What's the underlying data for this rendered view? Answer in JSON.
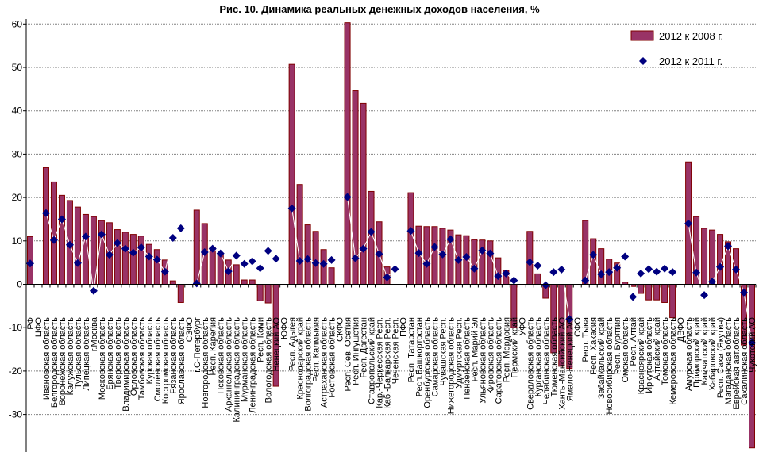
{
  "chart_data": {
    "type": "bar",
    "title": "Рис. 10. Динамика реальных денежных доходов населения, %",
    "xlabel": "",
    "ylabel": "",
    "ylim": [
      -38,
      60
    ],
    "yticks": [
      60,
      50,
      40,
      30,
      20,
      10,
      0,
      -10,
      -20,
      -30
    ],
    "grid": true,
    "legend_position": "top-right",
    "categories": [
      "РФ",
      "ЦФО",
      "Ивановская область",
      "Белгородская область",
      "Воронежская область",
      "Калужская область",
      "Тульская область",
      "Липецкая область",
      "г.Москва",
      "Московская область",
      "Брянская область",
      "Тверская область",
      "Владимирская область",
      "Орловская область",
      "Тамбовская область",
      "Курская область",
      "Смоленская область",
      "Костромская область",
      "Рязанская область",
      "Ярославская область",
      "СЗФО",
      "г.С-Петербург",
      "Новгородская область",
      "Респ. Карелия",
      "Псковская область",
      "Архангельская область",
      "Калининградская область",
      "Мурманская область",
      "Ленинградская область",
      "Респ. Коми",
      "Вологодская область",
      "Ненецкий АО",
      "ЮФО",
      "Респ. Адыгея",
      "Краснодарский край",
      "Волгоградская область",
      "Респ. Калмыкия",
      "Астраханская область",
      "Ростовская область",
      "СКФО",
      "Респ. Сев. Осетия",
      "Респ. Ингушетия",
      "Респ. Дагестан",
      "Ставропольский край",
      "Кар.-Черкесская Респ.",
      "Каб.-Балкарская Респ.",
      "Чеченская Респ.",
      "ПФО",
      "Респ. Татарстан",
      "Респ.Башкортостан",
      "Оренбургская область",
      "Самарская область",
      "Чувашская Респ.",
      "Нижегородская область",
      "Удмуртская Респ.",
      "Пензенская область",
      "Респ. Марий Эл",
      "Ульяновская область",
      "Кировская область",
      "Саратовская область",
      "Респ. Мордовия",
      "Пермский край",
      "УФО",
      "Свердловская область",
      "Курганская область",
      "Челябинская область",
      "Тюменская область",
      "Ханты-Мансийский АО",
      "Ямало-Ненецкий АО",
      "СФО",
      "Респ. Тыва",
      "Респ. Хакасия",
      "Забайкальский край",
      "Новосибирская область",
      "Респ. Бурятия",
      "Омская область",
      "Респ. Алтай",
      "Красноярский край",
      "Иркутская область",
      "Алтайский край",
      "Томская область",
      "Кемеровская область",
      "ДВФО",
      "Амурская область",
      "Приморский край",
      "Камчатский край",
      "Хабаровский край",
      "Респ. Саха (Якутия)",
      "Магаданская область",
      "Еврейская авт.область",
      "Сахалинская область",
      "Чукотский АО"
    ],
    "series": [
      {
        "name": "2012 к 2008 г.",
        "type": "bar",
        "color": "#993366",
        "border": "#800000",
        "values": [
          11.0,
          null,
          26.9,
          23.6,
          20.5,
          19.3,
          17.8,
          16.1,
          15.6,
          14.7,
          14.2,
          12.6,
          12.0,
          11.5,
          11.1,
          9.2,
          8.0,
          5.6,
          0.8,
          -4.2,
          null,
          17.1,
          14.0,
          8.6,
          7.1,
          5.6,
          4.5,
          1.0,
          1.0,
          -3.8,
          -4.3,
          -23.5,
          null,
          50.7,
          23.0,
          13.7,
          12.2,
          8.0,
          3.8,
          null,
          60.3,
          44.6,
          41.7,
          21.4,
          14.4,
          4.0,
          null,
          null,
          21.1,
          13.4,
          13.3,
          13.3,
          12.9,
          12.5,
          11.4,
          11.2,
          10.3,
          10.2,
          10.0,
          6.1,
          3.2,
          -10.0,
          null,
          12.2,
          2.4,
          -3.2,
          -15.8,
          -18.9,
          -19.4,
          null,
          14.7,
          10.5,
          8.2,
          5.8,
          4.9,
          0.5,
          -0.5,
          -2.1,
          -3.6,
          -3.6,
          -4.2,
          -7.7,
          null,
          28.2,
          15.6,
          12.9,
          12.5,
          11.5,
          9.8,
          8.2,
          -14.0,
          -37.7
        ]
      },
      {
        "name": "2012 к 2011 г.",
        "type": "scatter",
        "marker": "diamond",
        "color": "#000080",
        "values": [
          4.8,
          null,
          16.4,
          10.2,
          15.0,
          9.1,
          4.9,
          11.0,
          -1.5,
          11.5,
          6.8,
          9.5,
          8.2,
          7.3,
          8.5,
          6.4,
          5.7,
          2.9,
          10.7,
          12.9,
          null,
          0.2,
          7.4,
          8.2,
          7.1,
          3.0,
          6.6,
          4.7,
          5.3,
          3.7,
          7.7,
          5.9,
          null,
          17.5,
          5.4,
          5.8,
          4.9,
          4.7,
          5.6,
          null,
          20.1,
          6.0,
          8.2,
          12.1,
          7.0,
          1.6,
          3.5,
          null,
          12.3,
          7.2,
          4.7,
          8.6,
          6.9,
          10.4,
          5.6,
          6.3,
          3.6,
          7.8,
          7.1,
          1.9,
          2.5,
          0.9,
          null,
          5.1,
          4.3,
          -0.2,
          2.8,
          3.4,
          -8.0,
          null,
          0.9,
          6.8,
          2.3,
          2.8,
          3.8,
          6.4,
          -2.9,
          2.5,
          3.5,
          2.9,
          3.6,
          2.8,
          null,
          14.0,
          2.7,
          -2.5,
          0.6,
          4.0,
          8.8,
          3.4,
          -1.9,
          -13.5
        ]
      }
    ]
  }
}
